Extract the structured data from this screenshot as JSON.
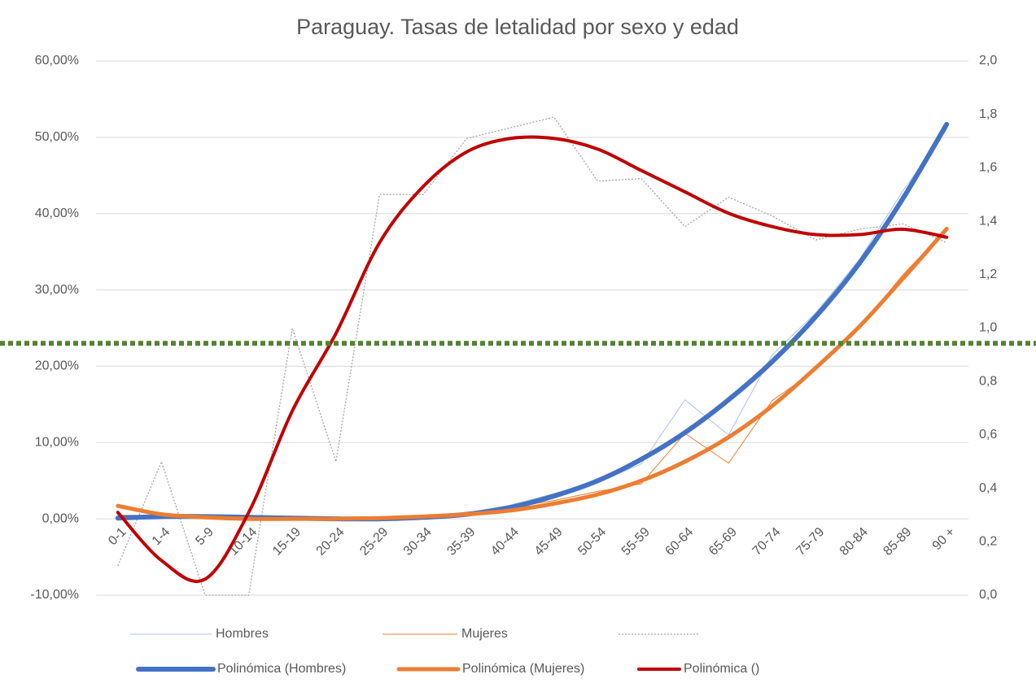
{
  "chart_data": {
    "type": "line",
    "title": "Paraguay. Tasas de letalidad por sexo y edad",
    "categories": [
      "0-1",
      "1-4",
      "5-9",
      "10-14",
      "15-19",
      "20-24",
      "25-29",
      "30-34",
      "35-39",
      "40-44",
      "45-49",
      "50-54",
      "55-59",
      "60-64",
      "65-69",
      "70-74",
      "75-79",
      "80-84",
      "85-89",
      "90 +"
    ],
    "ylim": [
      -10,
      60
    ],
    "yticks": [
      {
        "value": -10,
        "label": "-10,00%"
      },
      {
        "value": 0,
        "label": "0,00%"
      },
      {
        "value": 10,
        "label": "10,00%"
      },
      {
        "value": 20,
        "label": "20,00%"
      },
      {
        "value": 30,
        "label": "30,00%"
      },
      {
        "value": 40,
        "label": "40,00%"
      },
      {
        "value": 50,
        "label": "50,00%"
      },
      {
        "value": 60,
        "label": "60,00%"
      }
    ],
    "y2lim": [
      0,
      2
    ],
    "y2ticks": [
      {
        "value": 0,
        "label": "0,0"
      },
      {
        "value": 0.2,
        "label": "0,2"
      },
      {
        "value": 0.4,
        "label": "0,4"
      },
      {
        "value": 0.6,
        "label": "0,6"
      },
      {
        "value": 0.8,
        "label": "0,8"
      },
      {
        "value": 1,
        "label": "1,0"
      },
      {
        "value": 1.2,
        "label": "1,2"
      },
      {
        "value": 1.4,
        "label": "1,4"
      },
      {
        "value": 1.6,
        "label": "1,6"
      },
      {
        "value": 1.8,
        "label": "1,8"
      },
      {
        "value": 2,
        "label": "2,0"
      }
    ],
    "grid": true,
    "reference_line": {
      "value": 23,
      "color": "#548235"
    },
    "series": [
      {
        "name": "Hombres",
        "color": "#a9c4ea",
        "width": 1,
        "values": [
          0.2,
          0.5,
          0.3,
          0.2,
          0,
          0,
          0.1,
          0.3,
          0.8,
          1.8,
          3.3,
          4.8,
          7.2,
          15.6,
          11,
          21.5,
          27,
          34,
          43,
          51
        ]
      },
      {
        "name": "Mujeres",
        "color": "#ed7d31",
        "width": 1,
        "values": [
          0.5,
          0.4,
          0.2,
          0.1,
          0,
          0.1,
          0.2,
          0.4,
          0.8,
          1.5,
          2.4,
          3.6,
          4.6,
          11.2,
          7.3,
          15.5,
          19.5,
          25,
          32,
          38
        ]
      },
      {
        "color": "#a6a6a6",
        "width": 1.3,
        "dashed": true,
        "axis": "y2",
        "values": [
          0.11,
          0.5,
          0,
          0,
          1,
          0.5,
          1.5,
          1.5,
          1.71,
          1.75,
          1.79,
          1.55,
          1.56,
          1.38,
          1.49,
          1.42,
          1.33,
          1.37,
          1.39,
          1.32
        ]
      },
      {
        "name": "Polinómica (Hombres)",
        "color": "#4472c4",
        "width": 6,
        "smooth": true,
        "values": [
          0.1,
          0.3,
          0.3,
          0.2,
          0.1,
          0,
          0,
          0.2,
          0.6,
          1.5,
          3,
          5,
          7.8,
          11.3,
          15.6,
          20.6,
          26.5,
          33.5,
          42,
          51.7
        ]
      },
      {
        "name": "Polinómica (Mujeres)",
        "color": "#ed7d31",
        "width": 5,
        "smooth": true,
        "values": [
          1.7,
          0.6,
          0.2,
          0,
          0,
          0,
          0.1,
          0.3,
          0.6,
          1.1,
          2,
          3.2,
          5,
          7.5,
          10.7,
          14.8,
          19.8,
          25.2,
          31.5,
          38
        ]
      },
      {
        "name": "Polinómica ()",
        "color": "#c00000",
        "width": 4,
        "smooth": true,
        "axis": "y2",
        "values": [
          0.31,
          0.13,
          0.06,
          0.31,
          0.69,
          0.98,
          1.32,
          1.53,
          1.66,
          1.71,
          1.71,
          1.67,
          1.59,
          1.51,
          1.43,
          1.38,
          1.35,
          1.35,
          1.37,
          1.34
        ]
      }
    ]
  }
}
